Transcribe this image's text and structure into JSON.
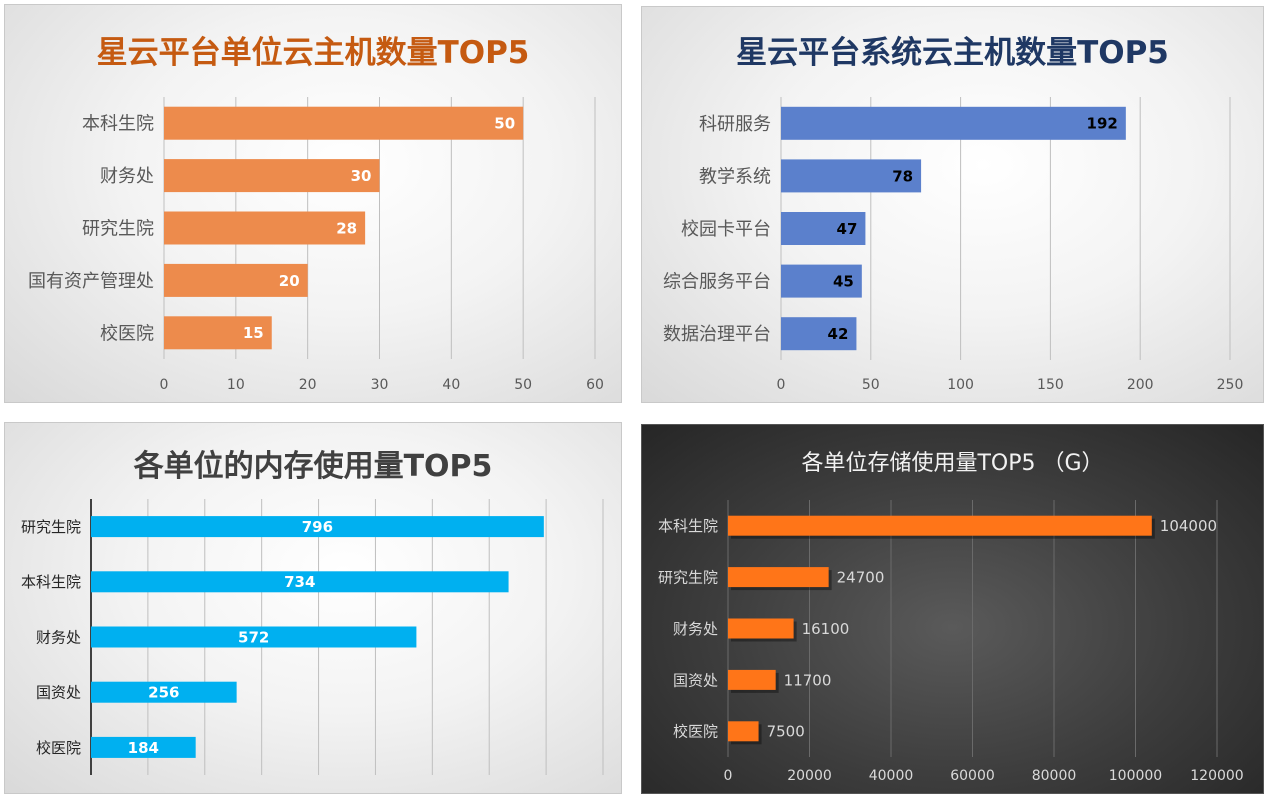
{
  "chart_data": [
    {
      "type": "bar",
      "orientation": "horizontal",
      "title": "星云平台单位云主机数量TOP5",
      "categories": [
        "本科生院",
        "财务处",
        "研究生院",
        "国有资产管理处",
        "校医院"
      ],
      "values": [
        50,
        30,
        28,
        20,
        15
      ],
      "xlim": [
        0,
        60
      ],
      "xticks": [
        "0",
        "10",
        "20",
        "30",
        "40",
        "50",
        "60"
      ],
      "grid": true,
      "data_labels": "inside-end",
      "colors": {
        "bar": "#ED8B4C",
        "title": "#C55A11",
        "label": "#FFFFFF",
        "axis_text": "#595959"
      }
    },
    {
      "type": "bar",
      "orientation": "horizontal",
      "title": "星云平台系统云主机数量TOP5",
      "categories": [
        "科研服务",
        "教学系统",
        "校园卡平台",
        "综合服务平台",
        "数据治理平台"
      ],
      "values": [
        192,
        78,
        47,
        45,
        42
      ],
      "xlim": [
        0,
        250
      ],
      "xticks": [
        "0",
        "50",
        "100",
        "150",
        "200",
        "250"
      ],
      "grid": true,
      "data_labels": "inside-end",
      "colors": {
        "bar": "#5B80CC",
        "title": "#1F3864",
        "label": "#000000",
        "axis_text": "#595959"
      }
    },
    {
      "type": "bar",
      "orientation": "horizontal",
      "title": "各单位的内存使用量TOP5",
      "categories": [
        "研究生院",
        "本科生院",
        "财务处",
        "国资处",
        "校医院"
      ],
      "values": [
        796,
        734,
        572,
        256,
        184
      ],
      "xlim": [
        0,
        900
      ],
      "grid": true,
      "data_labels": "center",
      "colors": {
        "bar": "#00B0F0",
        "title": "#404040",
        "label": "#FFFFFF",
        "axis_text": "#262626"
      }
    },
    {
      "type": "bar",
      "orientation": "horizontal",
      "title": "各单位存储使用量TOP5 （G）",
      "categories": [
        "本科生院",
        "研究生院",
        "财务处",
        "国资处",
        "校医院"
      ],
      "values": [
        104000,
        24700,
        16100,
        11700,
        7500
      ],
      "xlim": [
        0,
        120000
      ],
      "xticks": [
        "0",
        "20000",
        "40000",
        "60000",
        "80000",
        "100000",
        "120000"
      ],
      "grid": true,
      "data_labels": "outside-end",
      "colors": {
        "bar": "#FF7518",
        "title": "#F2F2F2",
        "label": "#D9D9D9",
        "axis_text": "#D9D9D9"
      }
    }
  ]
}
